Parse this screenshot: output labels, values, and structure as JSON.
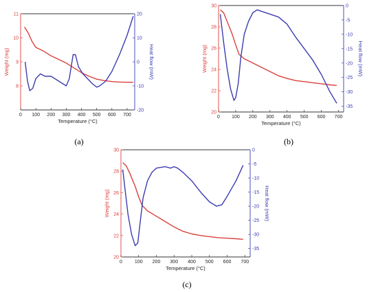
{
  "colors": {
    "weight": "#d9403a",
    "heat_flow": "#3b3bb0",
    "axis": "#333333"
  },
  "chart_data": [
    {
      "panel_label": "(a)",
      "type": "line",
      "xlabel": "Temperature (°C)",
      "ylabel_left": "Weight (mg)",
      "ylabel_right": "Heat flow (mW)",
      "xlim": [
        0,
        750
      ],
      "ylim_left": [
        7,
        11
      ],
      "ylim_right": [
        -20,
        20
      ],
      "xticks": [
        0,
        100,
        200,
        300,
        400,
        500,
        600,
        700
      ],
      "yticks_left": [
        8,
        9,
        10,
        11
      ],
      "yticks_right": [
        -20,
        -10,
        0,
        10,
        20
      ],
      "series": [
        {
          "axis": "left",
          "color": "#d9403a",
          "x": [
            25,
            50,
            75,
            100,
            150,
            200,
            250,
            300,
            350,
            400,
            450,
            500,
            550,
            600,
            650,
            700,
            740
          ],
          "y": [
            10.45,
            10.2,
            9.85,
            9.6,
            9.45,
            9.25,
            9.1,
            8.95,
            8.75,
            8.55,
            8.4,
            8.28,
            8.22,
            8.18,
            8.16,
            8.15,
            8.15
          ]
        },
        {
          "axis": "right",
          "color": "#3b3bb0",
          "x": [
            30,
            45,
            60,
            80,
            100,
            130,
            160,
            200,
            250,
            300,
            320,
            345,
            360,
            380,
            410,
            440,
            470,
            500,
            520,
            560,
            600,
            650,
            700,
            740
          ],
          "y": [
            0,
            -8,
            -12,
            -11,
            -7,
            -5,
            -6,
            -6,
            -8,
            -10,
            -7,
            3,
            3,
            -2,
            -5,
            -7,
            -9,
            -10.5,
            -10,
            -8,
            -4,
            3,
            11,
            19
          ]
        }
      ]
    },
    {
      "panel_label": "(b)",
      "type": "line",
      "xlabel": "Temperature (°C)",
      "ylabel_left": "Weight (mg)",
      "ylabel_right": "Heat flow (mW)",
      "xlim": [
        0,
        730
      ],
      "ylim_left": [
        20,
        30
      ],
      "ylim_right": [
        -37,
        0
      ],
      "xticks": [
        0,
        100,
        200,
        300,
        400,
        500,
        600,
        700
      ],
      "yticks_left": [
        20,
        22,
        24,
        26,
        28,
        30
      ],
      "yticks_right": [
        -35,
        -30,
        -25,
        -20,
        -15,
        -10,
        -5,
        0
      ],
      "series": [
        {
          "axis": "left",
          "color": "#d9403a",
          "x": [
            10,
            30,
            50,
            80,
            100,
            120,
            150,
            200,
            250,
            300,
            350,
            400,
            450,
            500,
            550,
            600,
            650,
            690
          ],
          "y": [
            29.6,
            29.3,
            28.5,
            27.3,
            26.3,
            25.4,
            25.0,
            24.6,
            24.2,
            23.8,
            23.4,
            23.15,
            22.95,
            22.85,
            22.75,
            22.65,
            22.55,
            22.5
          ]
        },
        {
          "axis": "right",
          "color": "#3b3bb0",
          "x": [
            10,
            30,
            50,
            70,
            90,
            100,
            115,
            130,
            150,
            175,
            200,
            225,
            250,
            300,
            350,
            400,
            450,
            500,
            550,
            600,
            650,
            690
          ],
          "y": [
            -3,
            -13,
            -22,
            -29,
            -33,
            -32,
            -27,
            -18,
            -10,
            -5.5,
            -2.5,
            -1.5,
            -2,
            -3,
            -4,
            -6.5,
            -11,
            -15,
            -19,
            -24,
            -30,
            -34
          ]
        }
      ]
    },
    {
      "panel_label": "(c)",
      "type": "line",
      "xlabel": "Temperature (°C)",
      "ylabel_left": "Weight (mg)",
      "ylabel_right": "Heat flow (mW)",
      "xlim": [
        0,
        730
      ],
      "ylim_left": [
        20,
        30
      ],
      "ylim_right": [
        -38,
        0
      ],
      "xticks": [
        0,
        100,
        200,
        300,
        400,
        500,
        600,
        700
      ],
      "yticks_left": [
        20,
        22,
        24,
        26,
        28,
        30
      ],
      "yticks_right": [
        -35,
        -30,
        -25,
        -20,
        -15,
        -10,
        -5,
        0
      ],
      "series": [
        {
          "axis": "left",
          "color": "#d9403a",
          "x": [
            10,
            30,
            50,
            80,
            100,
            120,
            150,
            200,
            250,
            300,
            350,
            400,
            450,
            500,
            550,
            600,
            650,
            690
          ],
          "y": [
            28.8,
            28.5,
            27.8,
            26.6,
            25.6,
            24.8,
            24.3,
            23.8,
            23.3,
            22.8,
            22.4,
            22.15,
            22.0,
            21.9,
            21.8,
            21.75,
            21.7,
            21.65
          ]
        },
        {
          "axis": "right",
          "color": "#3b3bb0",
          "x": [
            10,
            25,
            40,
            60,
            80,
            95,
            110,
            125,
            150,
            175,
            200,
            250,
            280,
            300,
            320,
            350,
            400,
            450,
            500,
            540,
            570,
            600,
            650,
            690
          ],
          "y": [
            -7,
            -15,
            -23,
            -30,
            -34,
            -33,
            -25,
            -17,
            -11,
            -8,
            -6.5,
            -6,
            -6.5,
            -6,
            -6.5,
            -8,
            -11,
            -15,
            -18.5,
            -20,
            -19.5,
            -16.5,
            -11,
            -5.5
          ]
        }
      ]
    }
  ]
}
